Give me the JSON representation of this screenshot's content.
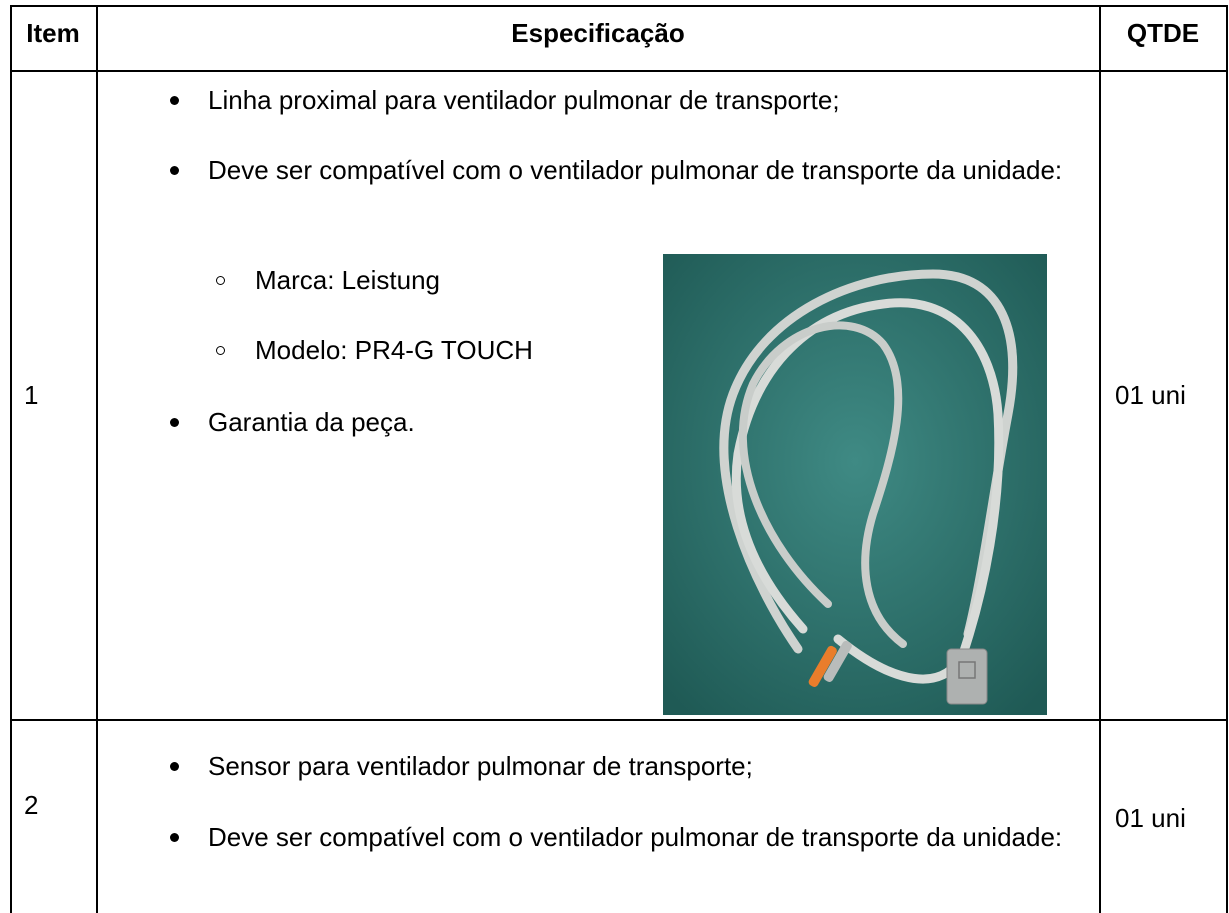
{
  "table": {
    "header": [
      "Item",
      "Especificação",
      "QTDE"
    ],
    "rows": [
      {
        "item": "1",
        "specification": [
          {
            "text": "Linha proximal para ventilador pulmonar de transporte;"
          },
          {
            "text": "Deve ser compatível com o ventilador pulmonar de transporte da unidade:",
            "subitems": [
              "Marca: Leistung",
              "Modelo: PR4-G TOUCH"
            ]
          },
          {
            "text": "Garantia da peça."
          }
        ],
        "quantity": "01 uni"
      },
      {
        "item": "2",
        "specification": [
          {
            "text": "Sensor para ventilador pulmonar de transporte;"
          },
          {
            "text": "Deve ser compatível com o ventilador pulmonar de transporte da unidade:"
          }
        ],
        "quantity": "01 uni"
      }
    ]
  }
}
